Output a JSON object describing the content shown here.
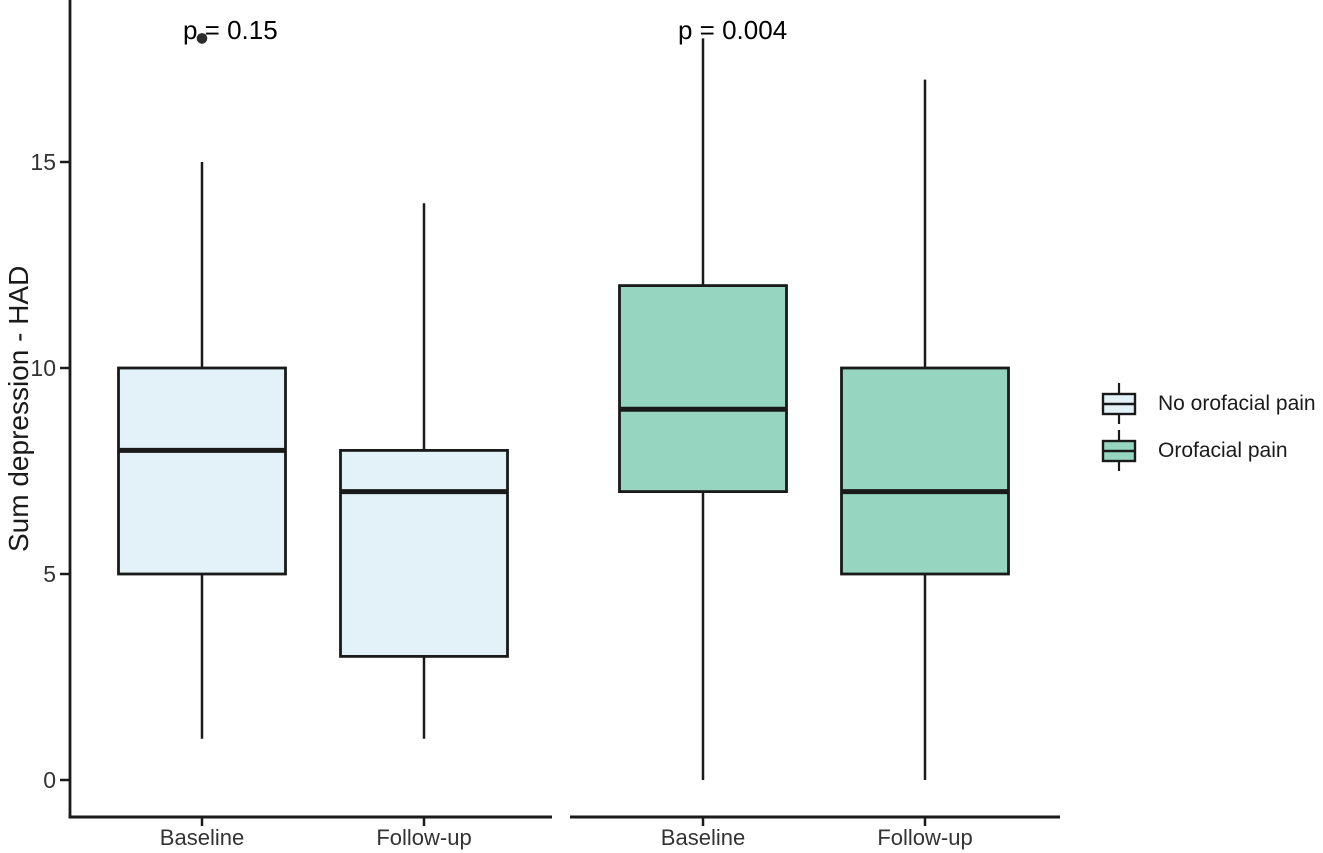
{
  "chart_data": {
    "type": "boxplot",
    "title": "",
    "xlabel": "",
    "ylabel": "Sum depression - HAD",
    "y_ticks": [
      0,
      5,
      10,
      15
    ],
    "ylim": [
      0,
      19
    ],
    "grid": false,
    "legend_position": "right",
    "panels": [
      {
        "name": "No orofacial pain",
        "p_label": "p = 0.15",
        "color": "#e2f2f8",
        "groups": [
          {
            "label": "Baseline",
            "whisker_low": 1,
            "q1": 5,
            "median": 8,
            "q3": 10,
            "whisker_high": 15,
            "outliers": [
              18
            ]
          },
          {
            "label": "Follow-up",
            "whisker_low": 1,
            "q1": 3,
            "median": 7,
            "q3": 8,
            "whisker_high": 14,
            "outliers": []
          }
        ]
      },
      {
        "name": "Orofacial pain",
        "p_label": "p = 0.004",
        "color": "#96d6c1",
        "groups": [
          {
            "label": "Baseline",
            "whisker_low": 0,
            "q1": 7,
            "median": 9,
            "q3": 12,
            "whisker_high": 18,
            "outliers": []
          },
          {
            "label": "Follow-up",
            "whisker_low": 0,
            "q1": 5,
            "median": 7,
            "q3": 10,
            "whisker_high": 17,
            "outliers": []
          }
        ]
      }
    ],
    "legend": {
      "items": [
        {
          "label": "No orofacial pain",
          "color": "#e2f2f8"
        },
        {
          "label": "Orofacial pain",
          "color": "#96d6c1"
        }
      ]
    }
  }
}
